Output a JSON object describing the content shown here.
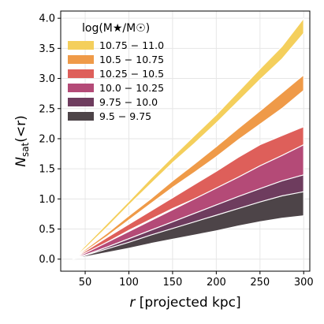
{
  "chart_data": {
    "type": "area",
    "xlabel_var": "r",
    "xlabel_rest": " [projected kpc]",
    "ylabel_var": "N",
    "ylabel_sub": "sat",
    "ylabel_rest": "(<r)",
    "xlim": [
      22,
      307
    ],
    "ylim": [
      -0.2,
      4.12
    ],
    "xticks": [
      50,
      100,
      150,
      200,
      250,
      300
    ],
    "yticks": [
      0.0,
      0.5,
      1.0,
      1.5,
      2.0,
      2.5,
      3.0,
      3.5,
      4.0
    ],
    "grid": true,
    "legend_placement": "top-left",
    "legend_title": "log(M★/M☉)",
    "x": [
      36,
      50,
      75,
      100,
      125,
      150,
      175,
      200,
      225,
      250,
      275,
      300
    ],
    "series": [
      {
        "name": "10.75 − 11.0",
        "color": "#f4cf5c",
        "lower": [
          0.0,
          0.18,
          0.53,
          0.9,
          1.25,
          1.6,
          1.92,
          2.26,
          2.62,
          2.98,
          3.32,
          3.75
        ],
        "upper": [
          0.0,
          0.22,
          0.59,
          0.96,
          1.34,
          1.7,
          2.05,
          2.4,
          2.78,
          3.16,
          3.53,
          4.0
        ]
      },
      {
        "name": "10.5 − 10.75",
        "color": "#ef9a48",
        "lower": [
          0.0,
          0.13,
          0.38,
          0.65,
          0.92,
          1.19,
          1.44,
          1.7,
          1.98,
          2.24,
          2.5,
          2.8
        ],
        "upper": [
          0.0,
          0.16,
          0.43,
          0.72,
          1.0,
          1.3,
          1.58,
          1.87,
          2.17,
          2.46,
          2.76,
          3.06
        ]
      },
      {
        "name": "10.25 − 10.5",
        "color": "#de5f5a",
        "lower": [
          0.0,
          0.09,
          0.28,
          0.48,
          0.66,
          0.84,
          1.0,
          1.17,
          1.34,
          1.5,
          1.68,
          1.86
        ],
        "upper": [
          0.0,
          0.13,
          0.36,
          0.58,
          0.8,
          1.02,
          1.24,
          1.46,
          1.69,
          1.9,
          2.05,
          2.2
        ]
      },
      {
        "name": "10.0 − 10.25",
        "color": "#b44a77",
        "lower": [
          0.0,
          0.07,
          0.2,
          0.34,
          0.48,
          0.62,
          0.76,
          0.9,
          1.03,
          1.14,
          1.25,
          1.35
        ],
        "upper": [
          0.0,
          0.1,
          0.28,
          0.46,
          0.64,
          0.82,
          1.0,
          1.18,
          1.36,
          1.55,
          1.72,
          1.9
        ]
      },
      {
        "name": "9.75 − 10.0",
        "color": "#6e3c5e",
        "lower": [
          0.0,
          0.05,
          0.15,
          0.25,
          0.35,
          0.45,
          0.55,
          0.64,
          0.74,
          0.82,
          0.91,
          1.0
        ],
        "upper": [
          0.0,
          0.07,
          0.2,
          0.34,
          0.48,
          0.62,
          0.76,
          0.9,
          1.04,
          1.17,
          1.3,
          1.4
        ]
      },
      {
        "name": "9.5 − 9.75",
        "color": "#4d4448",
        "lower": [
          0.0,
          0.04,
          0.11,
          0.18,
          0.26,
          0.33,
          0.4,
          0.47,
          0.55,
          0.62,
          0.68,
          0.72
        ],
        "upper": [
          0.0,
          0.06,
          0.17,
          0.28,
          0.4,
          0.51,
          0.62,
          0.73,
          0.84,
          0.95,
          1.05,
          1.12
        ]
      }
    ]
  }
}
